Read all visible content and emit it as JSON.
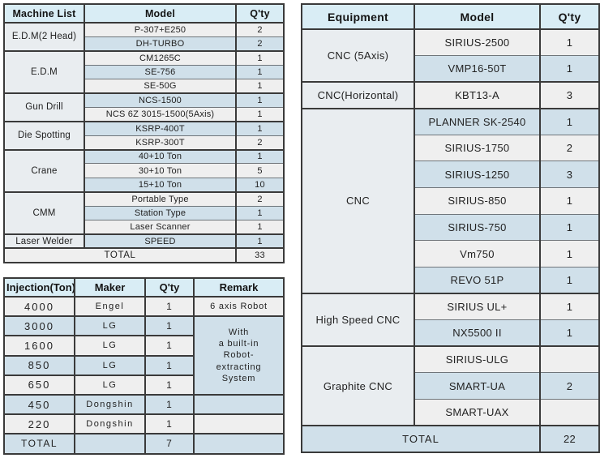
{
  "colors": {
    "header_bg": "#d9edf5",
    "row_gray": "#efefef",
    "row_blue": "#d0e0ea",
    "label_bg": "#e9edf0",
    "border_dark": "#3a3a3a",
    "border_light": "#6f757a",
    "text": "#222222"
  },
  "machine_table": {
    "headers": [
      "Machine List",
      "Model",
      "Q'ty"
    ],
    "groups": [
      {
        "label": "E.D.M(2 Head)",
        "rows": [
          [
            "P-307+E250",
            "2"
          ],
          [
            "DH-TURBO",
            "2"
          ]
        ]
      },
      {
        "label": "E.D.M",
        "rows": [
          [
            "CM1265C",
            "1"
          ],
          [
            "SE-756",
            "1"
          ],
          [
            "SE-50G",
            "1"
          ]
        ]
      },
      {
        "label": "Gun Drill",
        "rows": [
          [
            "NCS-1500",
            "1"
          ],
          [
            "NCS 6Z 3015-1500(5Axis)",
            "1"
          ]
        ]
      },
      {
        "label": "Die Spotting",
        "rows": [
          [
            "KSRP-400T",
            "1"
          ],
          [
            "KSRP-300T",
            "2"
          ]
        ]
      },
      {
        "label": "Crane",
        "rows": [
          [
            "40+10 Ton",
            "1"
          ],
          [
            "30+10 Ton",
            "5"
          ],
          [
            "15+10 Ton",
            "10"
          ]
        ]
      },
      {
        "label": "CMM",
        "rows": [
          [
            "Portable Type",
            "2"
          ],
          [
            "Station Type",
            "1"
          ],
          [
            "Laser Scanner",
            "1"
          ]
        ]
      },
      {
        "label": "Laser Welder",
        "rows": [
          [
            "SPEED",
            "1"
          ]
        ]
      }
    ],
    "total_label": "TOTAL",
    "total_qty": "33"
  },
  "injection_table": {
    "headers": [
      "Injection(Ton)",
      "Maker",
      "Q'ty",
      "Remark"
    ],
    "rows": [
      {
        "ton": "4000",
        "maker": "Engel",
        "qty": "1",
        "remark": "6 axis Robot",
        "remark_type": "own"
      },
      {
        "ton": "3000",
        "maker": "LG",
        "qty": "1",
        "remark_type": "merged-start"
      },
      {
        "ton": "1600",
        "maker": "LG",
        "qty": "1",
        "remark_type": "merged"
      },
      {
        "ton": "850",
        "maker": "LG",
        "qty": "1",
        "remark_type": "merged"
      },
      {
        "ton": "650",
        "maker": "LG",
        "qty": "1",
        "remark_type": "merged"
      },
      {
        "ton": "450",
        "maker": "Dongshin",
        "qty": "1",
        "remark": "",
        "remark_type": "own"
      },
      {
        "ton": "220",
        "maker": "Dongshin",
        "qty": "1",
        "remark": "",
        "remark_type": "own"
      }
    ],
    "merged_remark": "With\na built-in\nRobot-\nextracting\nSystem",
    "total_label": "TOTAL",
    "total_qty": "7"
  },
  "equipment_table": {
    "headers": [
      "Equipment",
      "Model",
      "Q'ty"
    ],
    "groups": [
      {
        "label": "CNC (5Axis)",
        "rows": [
          [
            "SIRIUS-2500",
            "1"
          ],
          [
            "VMP16-50T",
            "1"
          ]
        ]
      },
      {
        "label": "CNC(Horizontal)",
        "rows": [
          [
            "KBT13-A",
            "3"
          ]
        ]
      },
      {
        "label": "CNC",
        "rows": [
          [
            "PLANNER SK-2540",
            "1"
          ],
          [
            "SIRIUS-1750",
            "2"
          ],
          [
            "SIRIUS-1250",
            "3"
          ],
          [
            "SIRIUS-850",
            "1"
          ],
          [
            "SIRIUS-750",
            "1"
          ],
          [
            "Vm750",
            "1"
          ],
          [
            "REVO 51P",
            "1"
          ]
        ]
      },
      {
        "label": "High Speed CNC",
        "rows": [
          [
            "SIRIUS UL+",
            "1"
          ],
          [
            "NX5500 II",
            "1"
          ]
        ]
      },
      {
        "label": "Graphite CNC",
        "rows": [
          [
            "SIRIUS-ULG",
            ""
          ],
          [
            "SMART-UA",
            "2"
          ],
          [
            "SMART-UAX",
            ""
          ]
        ]
      }
    ],
    "total_label": "TOTAL",
    "total_qty": "22"
  }
}
